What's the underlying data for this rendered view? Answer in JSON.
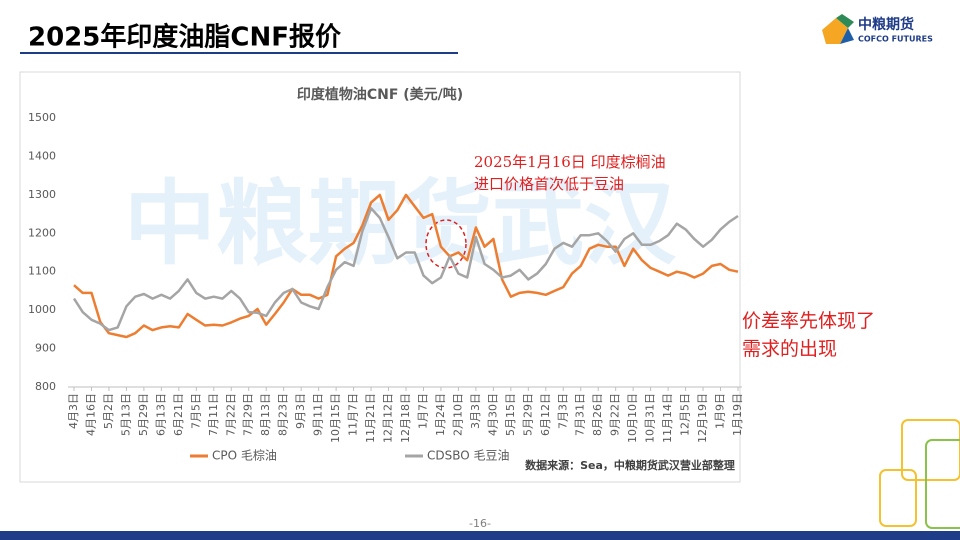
{
  "header": {
    "title": "2025年印度油脂CNF报价"
  },
  "logo": {
    "name": "中粮期货",
    "name_en": "COFCO FUTURES"
  },
  "watermark": "中粮期货武汉",
  "chart_data": {
    "type": "line",
    "title": "印度植物油CNF (美元/吨)",
    "categories": [
      "4月3日",
      null,
      "4月16日",
      null,
      "5月2日",
      null,
      "5月13日",
      null,
      "5月29日",
      null,
      "6月13日",
      null,
      "6月21日",
      null,
      "7月5日",
      null,
      "7月11日",
      null,
      "7月22日",
      null,
      "7月29日",
      null,
      "8月13日",
      null,
      "8月23日",
      null,
      "9月3日",
      null,
      "9月11日",
      null,
      "10月15日",
      null,
      "11月7日",
      null,
      "11月21日",
      null,
      "12月12日",
      null,
      "12月18日",
      null,
      "1月7日",
      null,
      "1月24日",
      null,
      "2月10日",
      null,
      "3月3日",
      null,
      "4月30日",
      null,
      "5月15日",
      null,
      "5月29日",
      null,
      "6月12日",
      null,
      "7月3日",
      null,
      "7月31日",
      null,
      "8月26日",
      null,
      "9月22日",
      null,
      "10月10日",
      null,
      "10月31日",
      null,
      "11月14日",
      null,
      "12月5日",
      null,
      "12月19日",
      null,
      "1月9日",
      null,
      "1月19日"
    ],
    "series": [
      {
        "name": "CPO 毛棕油",
        "color": "#ED7D31",
        "values": [
          1065,
          1045,
          1045,
          970,
          940,
          935,
          930,
          940,
          960,
          948,
          955,
          958,
          955,
          990,
          975,
          960,
          962,
          960,
          968,
          978,
          985,
          1003,
          962,
          990,
          1020,
          1055,
          1040,
          1040,
          1030,
          1040,
          1140,
          1160,
          1175,
          1220,
          1280,
          1300,
          1235,
          1260,
          1300,
          1270,
          1240,
          1250,
          1165,
          1140,
          1150,
          1130,
          1215,
          1165,
          1185,
          1080,
          1035,
          1045,
          1048,
          1045,
          1040,
          1050,
          1060,
          1095,
          1115,
          1160,
          1170,
          1165,
          1165,
          1115,
          1160,
          1130,
          1110,
          1100,
          1090,
          1100,
          1095,
          1085,
          1095,
          1115,
          1120,
          1105,
          1100
        ]
      },
      {
        "name": "CDSBO 毛豆油",
        "color": "#A5A5A5",
        "values": [
          1030,
          995,
          975,
          965,
          948,
          955,
          1010,
          1035,
          1042,
          1030,
          1040,
          1030,
          1050,
          1080,
          1045,
          1030,
          1035,
          1030,
          1050,
          1030,
          995,
          993,
          985,
          1020,
          1045,
          1055,
          1020,
          1010,
          1003,
          1060,
          1105,
          1125,
          1115,
          1205,
          1265,
          1240,
          1190,
          1135,
          1150,
          1150,
          1090,
          1070,
          1085,
          1140,
          1095,
          1085,
          1190,
          1120,
          1105,
          1085,
          1090,
          1105,
          1080,
          1095,
          1120,
          1160,
          1175,
          1165,
          1195,
          1195,
          1200,
          1180,
          1152,
          1185,
          1200,
          1170,
          1170,
          1180,
          1195,
          1225,
          1210,
          1185,
          1165,
          1183,
          1210,
          1230,
          1245
        ]
      }
    ],
    "ylim": [
      800,
      1500
    ],
    "yticks": [
      800,
      900,
      1000,
      1100,
      1200,
      1300,
      1400,
      1500
    ],
    "grid": false,
    "legend": "bottom",
    "annotation": [
      "2025年1月16日 印度棕榈油",
      "进口价格首次低于豆油"
    ],
    "source": "数据来源：Sea，中粮期货武汉营业部整理"
  },
  "side_note": [
    "价差率先体现了",
    "需求的出现"
  ],
  "page_number": "-16-"
}
